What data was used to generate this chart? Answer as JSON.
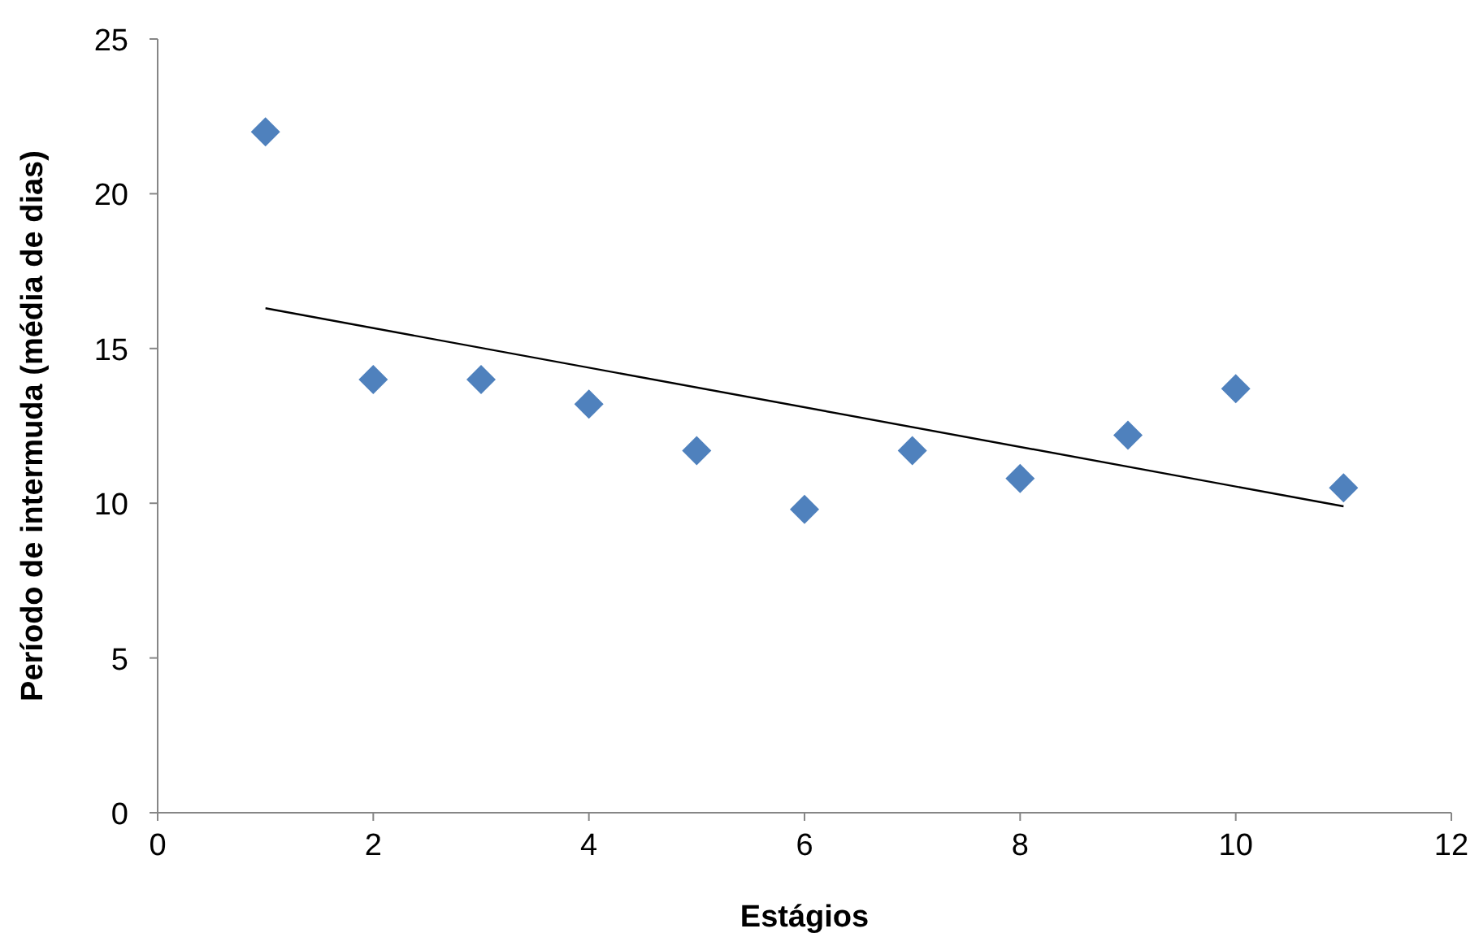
{
  "chart_data": {
    "type": "scatter",
    "xlabel": "Estágios",
    "ylabel": "Período de intermuda (média de dias)",
    "xlim": [
      0,
      12
    ],
    "xticks": [
      0,
      2,
      4,
      6,
      8,
      10,
      12
    ],
    "ylim": [
      0,
      25
    ],
    "yticks": [
      0,
      5,
      10,
      15,
      20,
      25
    ],
    "grid": false,
    "marker": "diamond",
    "series": [
      {
        "color": "#4f81bd",
        "x": [
          1,
          2,
          3,
          4,
          5,
          6,
          7,
          8,
          9,
          10,
          11
        ],
        "values": [
          22.0,
          14.0,
          14.0,
          13.2,
          11.7,
          9.8,
          11.7,
          10.8,
          12.2,
          13.7,
          10.5
        ]
      },
      {
        "type": "line",
        "color": "#000000",
        "marker": "none",
        "x": [
          1,
          11
        ],
        "values": [
          16.3,
          9.9
        ]
      }
    ]
  }
}
